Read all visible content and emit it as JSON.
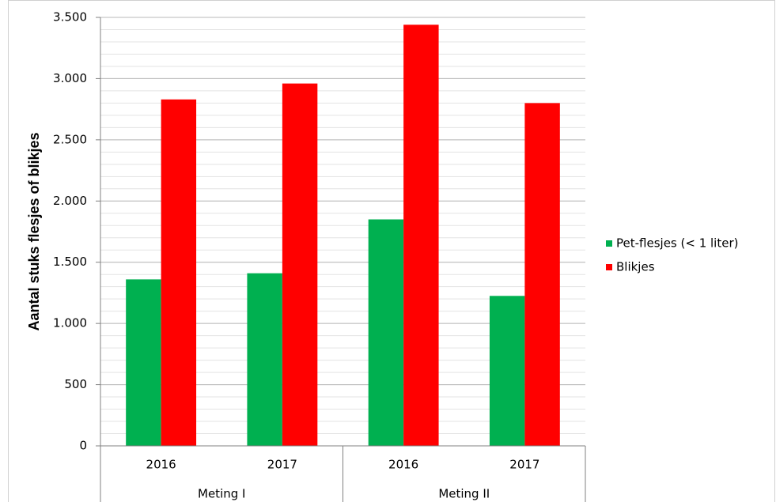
{
  "chart_data": {
    "type": "bar",
    "ylabel": "Aantal stuks flesjes of blikjes",
    "groups": [
      {
        "name": "Meting I",
        "categories": [
          "2016",
          "2017"
        ]
      },
      {
        "name": "Meting II",
        "categories": [
          "2016",
          "2017"
        ]
      }
    ],
    "series": [
      {
        "name": "Pet-flesjes (< 1 liter)",
        "color": "#00b050",
        "values": [
          1360,
          1410,
          1850,
          1225
        ]
      },
      {
        "name": "Blikjes",
        "color": "#ff0000",
        "values": [
          2830,
          2960,
          3440,
          2800
        ]
      }
    ],
    "ylim": [
      0,
      3500
    ],
    "yticks": [
      0,
      500,
      {
        "value": 1000,
        "label": "1.000"
      },
      {
        "value": 1500,
        "label": "1.500"
      },
      {
        "value": 2000,
        "label": "2.000"
      },
      {
        "value": 2500,
        "label": "2.500"
      },
      {
        "value": 3000,
        "label": "3.000"
      },
      {
        "value": 3500,
        "label": "3.500"
      }
    ],
    "minor_grid_step": 100,
    "grid": true,
    "legend": "right"
  }
}
